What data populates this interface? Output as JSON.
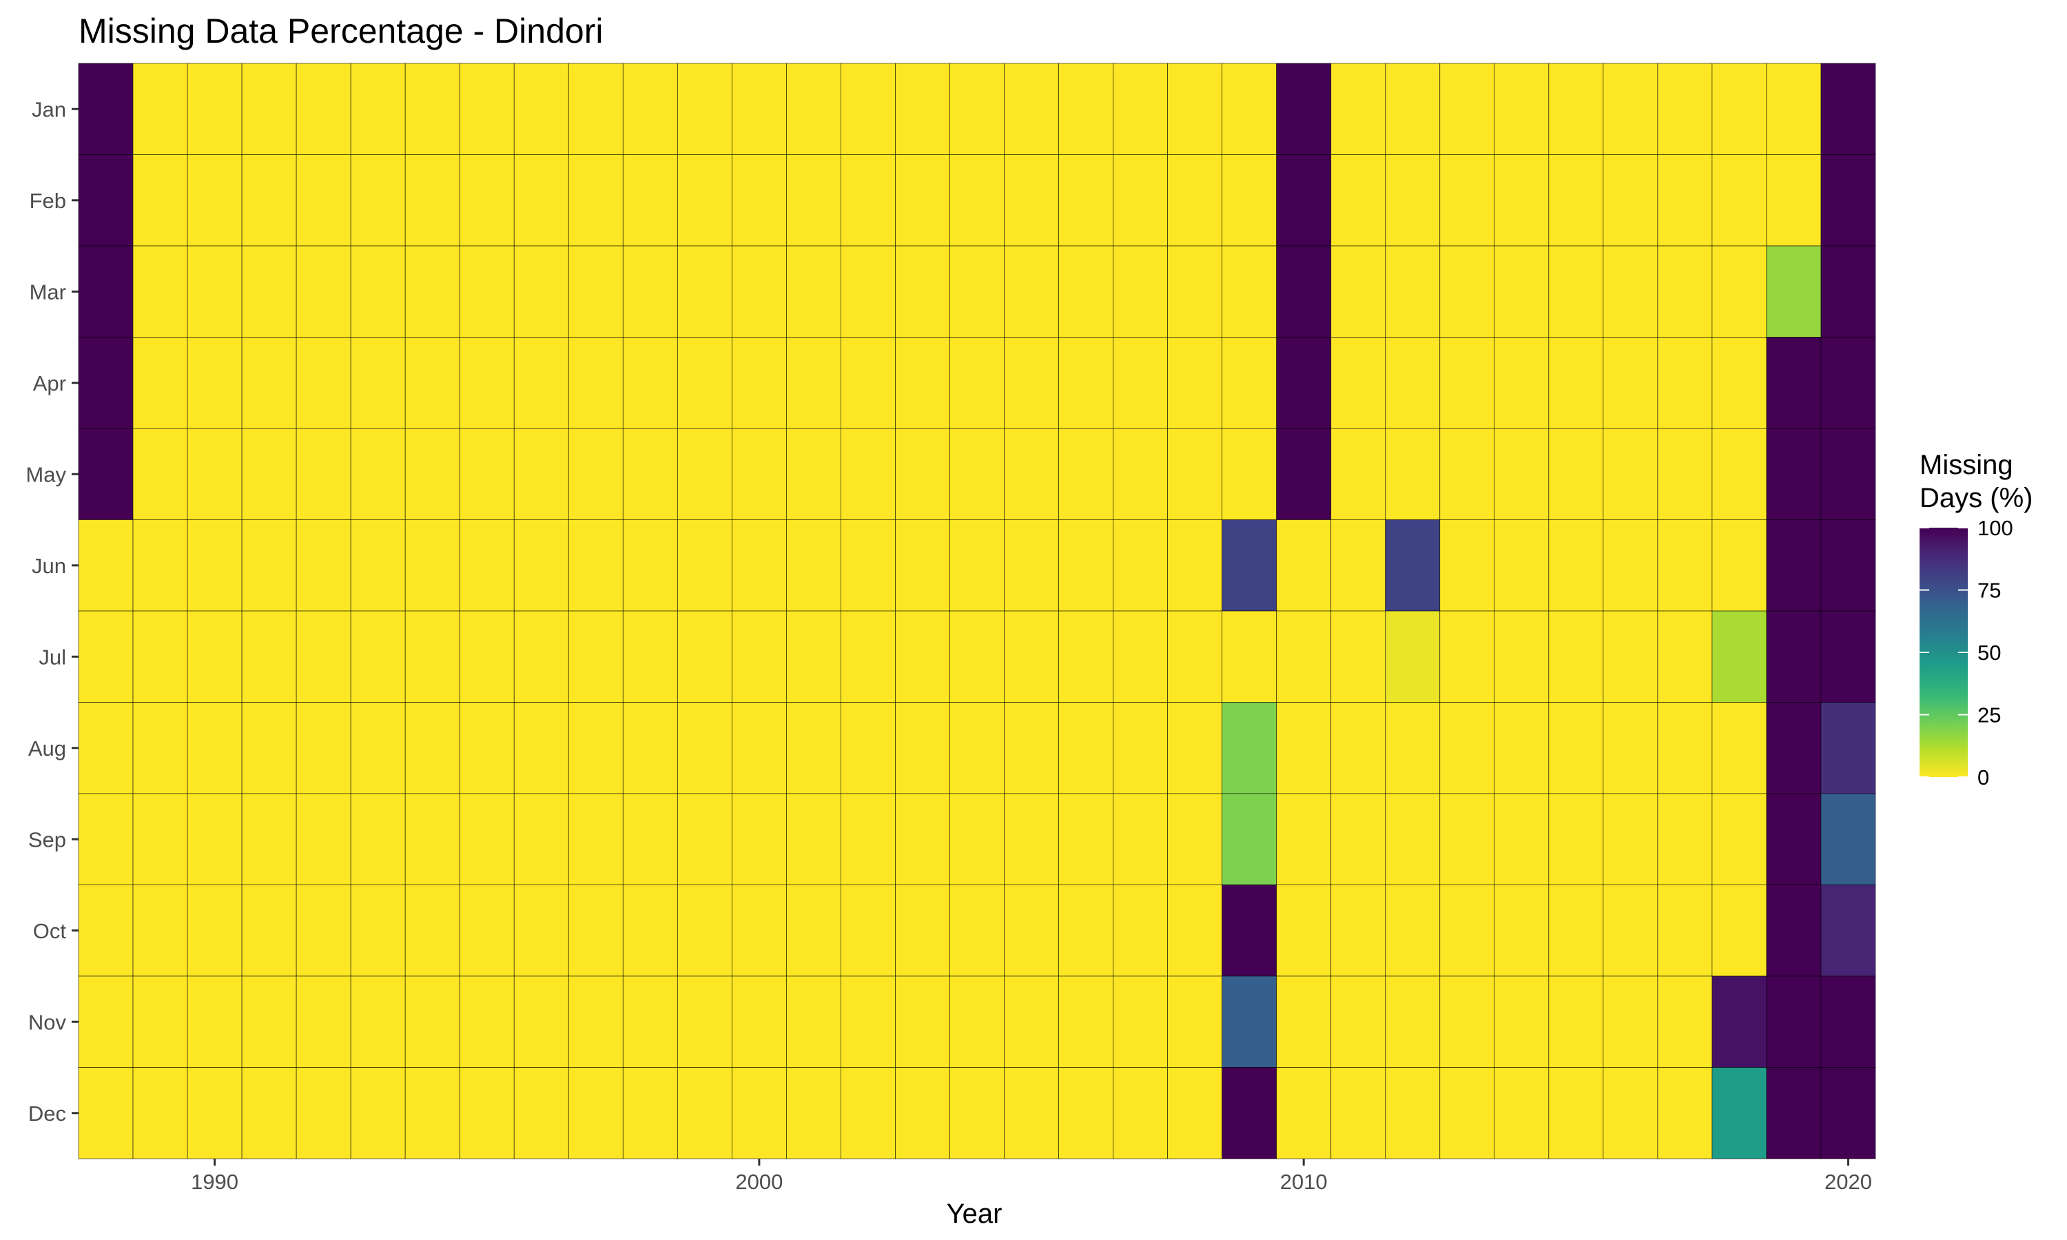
{
  "chart_data": {
    "type": "heatmap",
    "title": "Missing Data Percentage - Dindori",
    "xlabel": "Year",
    "ylabel": "",
    "x": [
      1988,
      1989,
      1990,
      1991,
      1992,
      1993,
      1994,
      1995,
      1996,
      1997,
      1998,
      1999,
      2000,
      2001,
      2002,
      2003,
      2004,
      2005,
      2006,
      2007,
      2008,
      2009,
      2010,
      2011,
      2012,
      2013,
      2014,
      2015,
      2016,
      2017,
      2018,
      2019,
      2020
    ],
    "x_ticks": [
      1990,
      2000,
      2010,
      2020
    ],
    "y": [
      "Jan",
      "Feb",
      "Mar",
      "Apr",
      "May",
      "Jun",
      "Jul",
      "Aug",
      "Sep",
      "Oct",
      "Nov",
      "Dec"
    ],
    "legend": {
      "title_lines": [
        "Missing",
        "Days (%)"
      ],
      "ticks": [
        100,
        75,
        50,
        25,
        0
      ],
      "range": [
        0,
        100
      ],
      "position": "right"
    },
    "colorscale": [
      "#fde725",
      "#b5de2b",
      "#6ece58",
      "#35b779",
      "#1f9e89",
      "#26828e",
      "#31688e",
      "#3e4989",
      "#482878",
      "#440154"
    ],
    "grid": false,
    "values": [
      [
        100,
        0,
        0,
        0,
        0,
        0,
        0,
        0,
        0,
        0,
        0,
        0,
        0,
        0,
        0,
        0,
        0,
        0,
        0,
        0,
        0,
        0,
        100,
        0,
        0,
        0,
        0,
        0,
        0,
        0,
        0,
        0,
        100
      ],
      [
        100,
        0,
        0,
        0,
        0,
        0,
        0,
        0,
        0,
        0,
        0,
        0,
        0,
        0,
        0,
        0,
        0,
        0,
        0,
        0,
        0,
        0,
        100,
        0,
        0,
        0,
        0,
        0,
        0,
        0,
        0,
        0,
        100
      ],
      [
        100,
        0,
        0,
        0,
        0,
        0,
        0,
        0,
        0,
        0,
        0,
        0,
        0,
        0,
        0,
        0,
        0,
        0,
        0,
        0,
        0,
        0,
        100,
        0,
        0,
        0,
        0,
        0,
        0,
        0,
        0,
        16,
        100
      ],
      [
        100,
        0,
        0,
        0,
        0,
        0,
        0,
        0,
        0,
        0,
        0,
        0,
        0,
        0,
        0,
        0,
        0,
        0,
        0,
        0,
        0,
        0,
        100,
        0,
        0,
        0,
        0,
        0,
        0,
        0,
        0,
        100,
        100
      ],
      [
        100,
        0,
        0,
        0,
        0,
        0,
        0,
        0,
        0,
        0,
        0,
        0,
        0,
        0,
        0,
        0,
        0,
        0,
        0,
        0,
        0,
        0,
        100,
        0,
        0,
        0,
        0,
        0,
        0,
        0,
        0,
        100,
        100
      ],
      [
        0,
        0,
        0,
        0,
        0,
        0,
        0,
        0,
        0,
        0,
        0,
        0,
        0,
        0,
        0,
        0,
        0,
        0,
        0,
        0,
        0,
        80,
        0,
        0,
        80,
        0,
        0,
        0,
        0,
        0,
        0,
        100,
        100
      ],
      [
        0,
        0,
        0,
        0,
        0,
        0,
        0,
        0,
        0,
        0,
        0,
        0,
        0,
        0,
        0,
        0,
        0,
        0,
        0,
        0,
        0,
        0,
        0,
        0,
        3,
        0,
        0,
        0,
        0,
        0,
        13,
        100,
        100
      ],
      [
        0,
        0,
        0,
        0,
        0,
        0,
        0,
        0,
        0,
        0,
        0,
        0,
        0,
        0,
        0,
        0,
        0,
        0,
        0,
        0,
        0,
        20,
        0,
        0,
        0,
        0,
        0,
        0,
        0,
        0,
        0,
        100,
        87
      ],
      [
        0,
        0,
        0,
        0,
        0,
        0,
        0,
        0,
        0,
        0,
        0,
        0,
        0,
        0,
        0,
        0,
        0,
        0,
        0,
        0,
        0,
        20,
        0,
        0,
        0,
        0,
        0,
        0,
        0,
        0,
        0,
        100,
        70
      ],
      [
        0,
        0,
        0,
        0,
        0,
        0,
        0,
        0,
        0,
        0,
        0,
        0,
        0,
        0,
        0,
        0,
        0,
        0,
        0,
        0,
        0,
        100,
        0,
        0,
        0,
        0,
        0,
        0,
        0,
        0,
        0,
        100,
        90
      ],
      [
        0,
        0,
        0,
        0,
        0,
        0,
        0,
        0,
        0,
        0,
        0,
        0,
        0,
        0,
        0,
        0,
        0,
        0,
        0,
        0,
        0,
        70,
        0,
        0,
        0,
        0,
        0,
        0,
        0,
        0,
        95,
        100,
        100
      ],
      [
        0,
        0,
        0,
        0,
        0,
        0,
        0,
        0,
        0,
        0,
        0,
        0,
        0,
        0,
        0,
        0,
        0,
        0,
        0,
        0,
        0,
        100,
        0,
        0,
        0,
        0,
        0,
        0,
        0,
        0,
        45,
        100,
        100
      ]
    ]
  }
}
